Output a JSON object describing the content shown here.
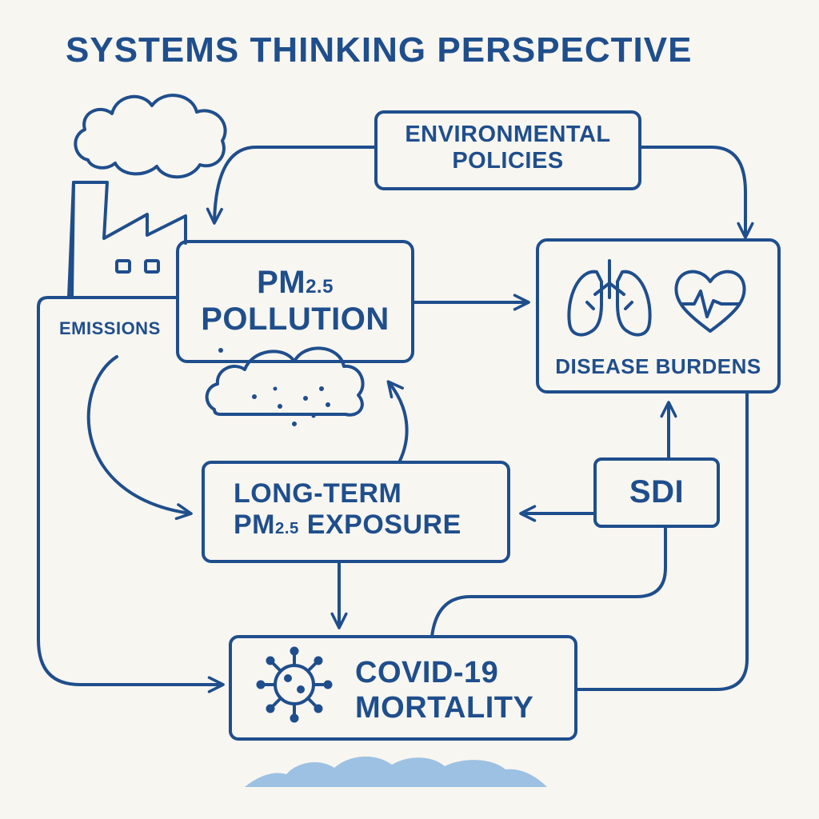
{
  "title": "SYSTEMS THINKING PERSPECTIVE",
  "nodes": {
    "environmental_policies": {
      "line1": "ENVIRONMENTAL",
      "line2": "POLICIES"
    },
    "emissions": {
      "label": "EMISSIONS"
    },
    "pm_pollution": {
      "prefix": "PM",
      "subscript": "2.5",
      "line2": "POLLUTION"
    },
    "disease_burdens": {
      "label": "DISEASE BURDENS"
    },
    "long_term_exposure": {
      "line1": "LONG-TERM",
      "prefix": "PM",
      "subscript": "2.5",
      "suffix": " EXPOSURE"
    },
    "sdi": {
      "label": "SDI"
    },
    "covid_mortality": {
      "line1": "COVID-19",
      "line2": "MORTALITY"
    }
  },
  "colors": {
    "stroke": "#1f4e8c",
    "background": "#f8f6f1",
    "hill": "#9dc1e3"
  },
  "icons": [
    "factory-icon",
    "smoke-cloud-icon",
    "pollution-cloud-icon",
    "lungs-icon",
    "heart-icon",
    "virus-icon"
  ]
}
